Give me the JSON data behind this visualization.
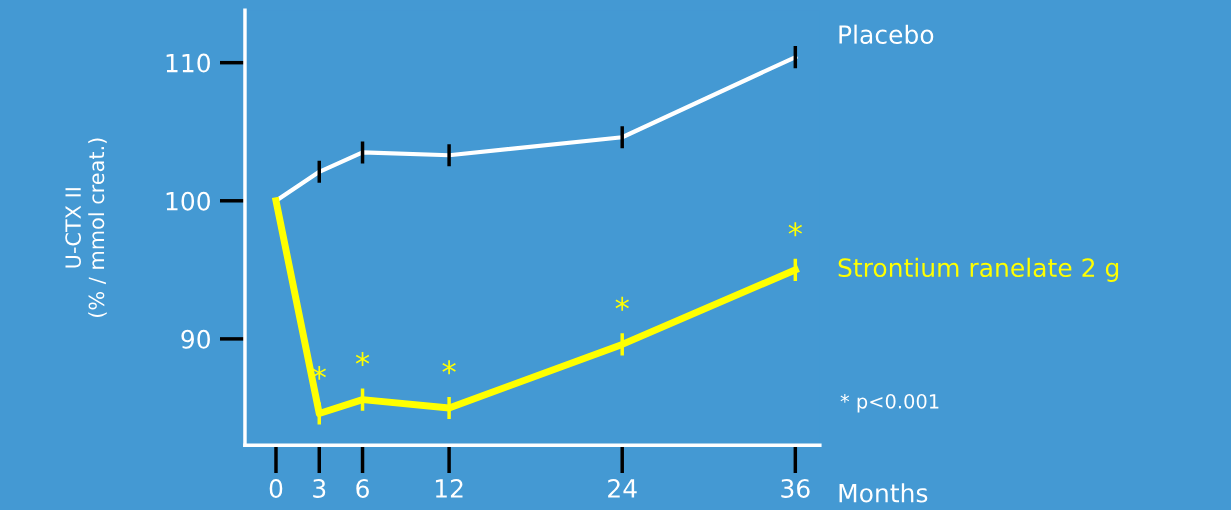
{
  "chart_data": {
    "type": "line",
    "xlabel": "Months",
    "ylabel": "U-CTX II\n(% / mmol creat.)",
    "x": [
      0,
      3,
      6,
      12,
      24,
      36
    ],
    "xlim": [
      -2.15,
      37.7
    ],
    "xticks": [
      0,
      3,
      6,
      12,
      24,
      36
    ],
    "ylim": [
      82.3,
      113.8
    ],
    "yticks": [
      90,
      100,
      110
    ],
    "grid": false,
    "legend": false,
    "marker": "none",
    "line_style": "solid",
    "series": [
      {
        "name": "Placebo",
        "color": "#ffffff",
        "values": [
          100,
          102.1,
          103.5,
          103.3,
          104.6,
          110.4
        ],
        "errors": [
          null,
          0.8,
          0.8,
          0.8,
          0.8,
          0.8
        ]
      },
      {
        "name": "Strontium ranelate 2 g",
        "color": "#ffff00",
        "values": [
          100,
          84.6,
          85.6,
          85.0,
          89.6,
          95.0
        ],
        "errors": [
          null,
          0.8,
          0.8,
          0.8,
          0.8,
          0.8
        ]
      }
    ],
    "annotations": [
      {
        "text": "*",
        "x": 3,
        "y": 84.6
      },
      {
        "text": "*",
        "x": 6,
        "y": 85.6
      },
      {
        "text": "*",
        "x": 12,
        "y": 85.0
      },
      {
        "text": "*",
        "x": 24,
        "y": 89.6
      },
      {
        "text": "*",
        "x": 36,
        "y": 95.0
      },
      "* p<0.001"
    ]
  }
}
